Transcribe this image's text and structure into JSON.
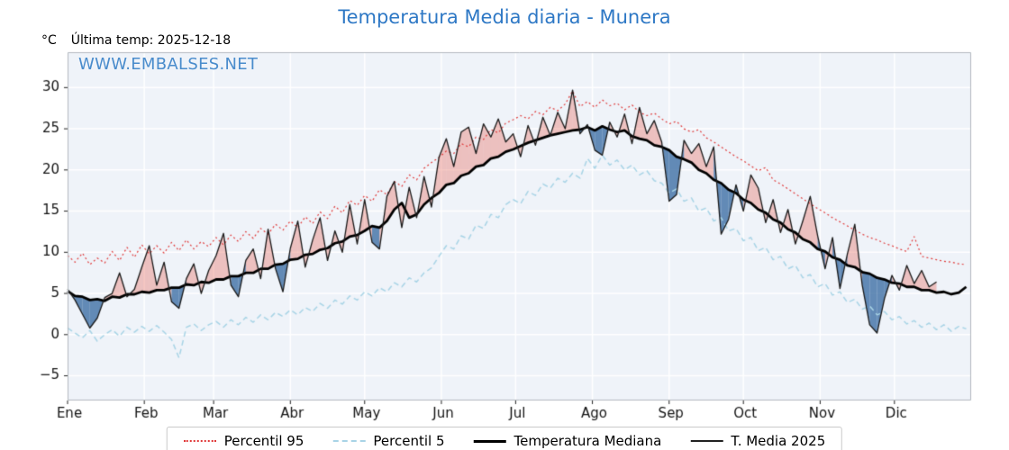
{
  "header": {
    "title": "Temperatura Media diaria - Munera",
    "unit_label": "°C",
    "last_temp_label": "Última temp: 2025-12-18",
    "watermark": "WWW.EMBALSES.NET"
  },
  "colors": {
    "title": "#2e78c5",
    "watermark": "#4a8ccc",
    "plot_bg": "#eff3f9",
    "grid": "#ffffff",
    "frame": "#b3b9bf",
    "tick_label": "#111111",
    "p95": "#e03a3a",
    "p5": "#a8d4e6",
    "median": "#000000",
    "t2025": "#1a1a1a",
    "fill_above": "rgba(229,83,69,0.32)",
    "fill_below": "rgba(58,108,163,0.78)"
  },
  "chart_data": {
    "type": "line",
    "title": "Temperatura Media diaria - Munera",
    "ylabel": "°C",
    "legend_position": "bottom",
    "grid": true,
    "x_unit": "day_of_year",
    "days_in_year": 365,
    "months": [
      "Ene",
      "Feb",
      "Mar",
      "Abr",
      "May",
      "Jun",
      "Jul",
      "Ago",
      "Sep",
      "Oct",
      "Nov",
      "Dic"
    ],
    "month_start_days": [
      0,
      31,
      59,
      90,
      120,
      151,
      181,
      212,
      243,
      273,
      304,
      334
    ],
    "yticks": [
      -5,
      0,
      5,
      10,
      15,
      20,
      25,
      30
    ],
    "ytick_labels": [
      "−5",
      "0",
      "5",
      "10",
      "15",
      "20",
      "25",
      "30"
    ],
    "ylim": [
      -8,
      34.3
    ],
    "x": [
      0,
      3,
      6,
      9,
      12,
      15,
      18,
      21,
      24,
      27,
      30,
      33,
      36,
      39,
      42,
      45,
      48,
      51,
      54,
      57,
      60,
      63,
      66,
      69,
      72,
      75,
      78,
      81,
      84,
      87,
      90,
      93,
      96,
      99,
      102,
      105,
      108,
      111,
      114,
      117,
      120,
      123,
      126,
      129,
      132,
      135,
      138,
      141,
      144,
      147,
      150,
      153,
      156,
      159,
      162,
      165,
      168,
      171,
      174,
      177,
      180,
      183,
      186,
      189,
      192,
      195,
      198,
      201,
      204,
      207,
      210,
      213,
      216,
      219,
      222,
      225,
      228,
      231,
      234,
      237,
      240,
      243,
      246,
      249,
      252,
      255,
      258,
      261,
      264,
      267,
      270,
      273,
      276,
      279,
      282,
      285,
      288,
      291,
      294,
      297,
      300,
      303,
      306,
      309,
      312,
      315,
      318,
      321,
      324,
      327,
      330,
      333,
      336,
      339,
      342,
      345,
      348,
      351,
      354,
      357,
      360,
      363
    ],
    "series": [
      {
        "name": "Percentil 95",
        "values": [
          9.6,
          8.8,
          9.9,
          8.5,
          9.3,
          8.7,
          10.1,
          9.0,
          10.6,
          9.4,
          10.9,
          9.8,
          10.8,
          9.9,
          11.2,
          10.2,
          11.5,
          10.4,
          11.3,
          10.7,
          11.8,
          10.9,
          12.1,
          11.3,
          12.5,
          11.7,
          12.9,
          12.2,
          13.4,
          12.7,
          13.8,
          13.0,
          14.3,
          13.5,
          14.9,
          14.1,
          15.6,
          14.8,
          16.3,
          15.7,
          16.9,
          16.2,
          17.6,
          17.0,
          18.6,
          18.0,
          19.4,
          18.8,
          20.2,
          20.9,
          21.5,
          22.3,
          22.0,
          23.2,
          22.8,
          24.0,
          23.7,
          24.9,
          24.5,
          25.7,
          26.1,
          26.6,
          26.2,
          27.1,
          26.7,
          27.6,
          27.2,
          28.0,
          29.6,
          27.7,
          28.3,
          27.6,
          28.5,
          27.8,
          28.1,
          27.3,
          27.9,
          27.0,
          26.6,
          26.9,
          26.2,
          25.6,
          25.9,
          25.0,
          24.6,
          24.9,
          23.9,
          23.4,
          22.8,
          22.2,
          21.6,
          21.1,
          20.5,
          19.9,
          20.3,
          18.8,
          18.3,
          17.7,
          17.1,
          16.5,
          15.9,
          15.3,
          14.8,
          14.2,
          13.7,
          13.2,
          12.7,
          12.2,
          11.8,
          11.5,
          11.1,
          10.8,
          10.4,
          10.1,
          11.9,
          9.5,
          9.3,
          9.1,
          8.9,
          8.8,
          8.6,
          8.5
        ]
      },
      {
        "name": "Percentil 5",
        "values": [
          0.8,
          0.2,
          -0.4,
          0.5,
          -0.8,
          0.0,
          0.6,
          -0.2,
          0.9,
          0.3,
          1.0,
          0.4,
          1.1,
          0.3,
          -0.6,
          -2.8,
          0.9,
          1.3,
          0.5,
          1.2,
          1.6,
          0.9,
          1.8,
          1.2,
          2.1,
          1.5,
          2.4,
          1.8,
          2.7,
          2.2,
          3.0,
          2.4,
          3.3,
          2.8,
          3.8,
          3.2,
          4.2,
          3.7,
          4.7,
          4.2,
          5.2,
          4.7,
          5.7,
          5.2,
          6.3,
          5.8,
          6.9,
          6.4,
          7.5,
          8.1,
          9.5,
          10.8,
          10.4,
          12.0,
          11.6,
          13.3,
          12.9,
          14.6,
          14.2,
          15.8,
          16.4,
          15.9,
          17.4,
          16.9,
          18.3,
          17.8,
          19.0,
          18.5,
          19.6,
          19.0,
          21.4,
          20.2,
          21.8,
          20.6,
          21.2,
          20.0,
          20.6,
          19.4,
          19.9,
          18.7,
          18.4,
          17.2,
          17.7,
          16.2,
          16.6,
          15.0,
          15.4,
          13.8,
          14.2,
          12.6,
          12.9,
          11.4,
          11.8,
          10.2,
          10.6,
          9.1,
          9.5,
          8.0,
          8.4,
          6.9,
          7.3,
          5.8,
          6.2,
          4.8,
          5.2,
          3.9,
          4.3,
          3.1,
          3.5,
          2.4,
          2.8,
          1.8,
          2.2,
          1.3,
          1.7,
          0.9,
          1.4,
          0.6,
          1.2,
          0.4,
          1.0,
          0.7
        ]
      },
      {
        "name": "Temperatura Mediana",
        "values": [
          5.3,
          4.7,
          4.6,
          4.2,
          4.3,
          4.1,
          4.6,
          4.5,
          4.9,
          4.9,
          5.2,
          5.1,
          5.4,
          5.4,
          5.7,
          5.7,
          6.1,
          6.0,
          6.4,
          6.3,
          6.7,
          6.7,
          7.1,
          7.1,
          7.5,
          7.5,
          8.0,
          8.0,
          8.5,
          8.6,
          9.1,
          9.2,
          9.7,
          9.8,
          10.3,
          10.5,
          11.1,
          11.3,
          11.9,
          12.1,
          12.6,
          13.2,
          13.0,
          13.8,
          15.2,
          16.0,
          14.2,
          14.6,
          15.8,
          16.6,
          17.2,
          18.2,
          18.4,
          19.3,
          19.6,
          20.4,
          20.6,
          21.4,
          21.6,
          22.2,
          22.5,
          22.9,
          23.3,
          23.6,
          23.9,
          24.2,
          24.4,
          24.6,
          24.8,
          24.9,
          25.2,
          24.8,
          25.3,
          24.9,
          24.6,
          24.8,
          24.1,
          23.8,
          23.6,
          23.0,
          22.8,
          22.4,
          21.6,
          21.3,
          20.9,
          20.0,
          19.6,
          18.8,
          18.4,
          17.6,
          17.2,
          16.4,
          16.0,
          15.2,
          14.8,
          14.0,
          13.6,
          12.8,
          12.4,
          11.6,
          11.2,
          10.4,
          10.1,
          9.4,
          9.1,
          8.4,
          8.2,
          7.6,
          7.4,
          6.9,
          6.7,
          6.3,
          6.2,
          5.8,
          5.8,
          5.4,
          5.4,
          5.1,
          5.2,
          4.9,
          5.1,
          5.8
        ]
      },
      {
        "name": "T. Media 2025",
        "values": [
          5.5,
          4.2,
          2.5,
          0.8,
          2.0,
          4.5,
          5.0,
          7.5,
          4.6,
          5.5,
          8.2,
          10.8,
          6.0,
          8.8,
          4.0,
          3.2,
          6.8,
          8.6,
          5.0,
          7.8,
          9.6,
          12.3,
          6.0,
          4.6,
          9.0,
          10.4,
          6.8,
          12.8,
          8.0,
          5.2,
          10.5,
          13.8,
          8.2,
          11.5,
          14.2,
          9.0,
          12.6,
          10.0,
          15.8,
          11.0,
          16.4,
          11.2,
          10.4,
          16.8,
          18.6,
          13.0,
          17.9,
          14.2,
          19.2,
          15.5,
          21.5,
          23.8,
          20.4,
          24.6,
          25.2,
          22.0,
          25.6,
          24.0,
          26.2,
          23.4,
          24.4,
          21.6,
          25.4,
          23.0,
          26.4,
          24.2,
          27.0,
          25.0,
          29.7,
          24.4,
          25.5,
          22.4,
          21.8,
          25.8,
          24.0,
          26.8,
          23.2,
          27.6,
          24.4,
          26.0,
          23.4,
          16.2,
          17.0,
          23.6,
          22.0,
          23.2,
          20.4,
          22.8,
          12.2,
          14.0,
          18.2,
          15.0,
          19.4,
          17.8,
          13.6,
          16.4,
          12.4,
          15.2,
          11.0,
          13.8,
          16.8,
          12.0,
          8.0,
          11.8,
          5.6,
          9.8,
          13.4,
          6.0,
          1.2,
          0.2,
          4.4,
          7.2,
          5.4,
          8.4,
          6.2,
          7.8,
          5.8,
          6.4,
          null,
          null,
          null,
          null
        ]
      }
    ]
  }
}
